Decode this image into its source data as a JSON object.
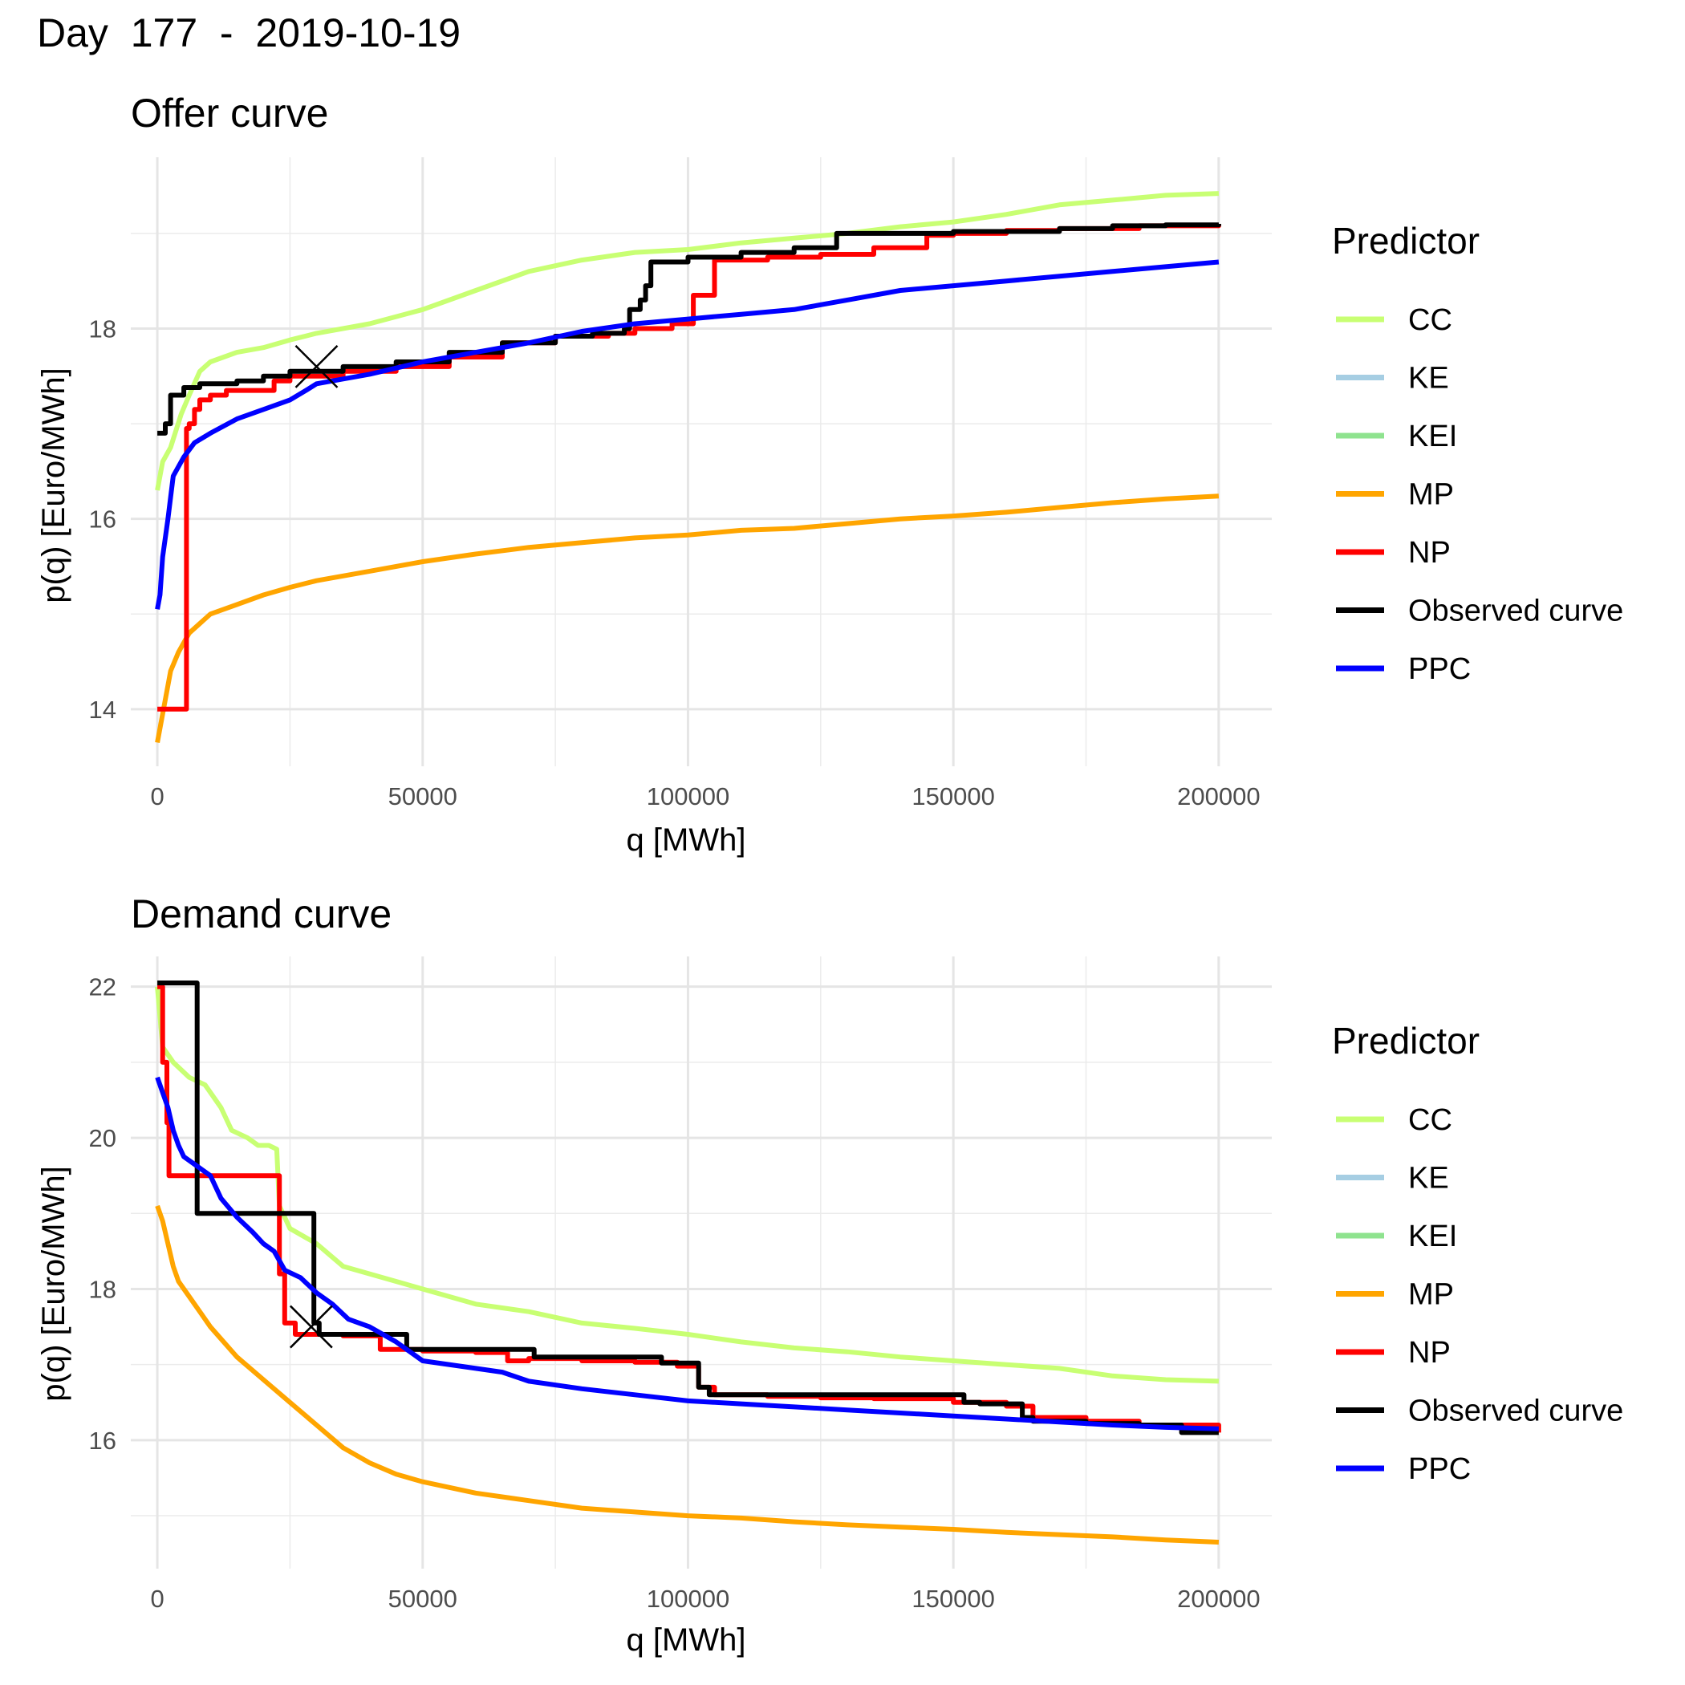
{
  "title": "Day  177  -  2019-10-19",
  "legend": {
    "title": "Predictor",
    "items": [
      {
        "label": "CC",
        "color": "#c8ff73"
      },
      {
        "label": "KE",
        "color": "#a6cee3"
      },
      {
        "label": "KEI",
        "color": "#8fe38f"
      },
      {
        "label": "MP",
        "color": "#ffa500"
      },
      {
        "label": "NP",
        "color": "#ff0000"
      },
      {
        "label": "Observed curve",
        "color": "#000000"
      },
      {
        "label": "PPC",
        "color": "#0000ff"
      }
    ]
  },
  "chart_data": [
    {
      "type": "line",
      "title": "Offer curve",
      "xlabel": "q [MWh]",
      "ylabel": "p(q) [Euro/MWh]",
      "xlim": [
        -5000,
        210000
      ],
      "ylim": [
        13.4,
        19.8
      ],
      "xticks": [
        0,
        50000,
        100000,
        150000,
        200000
      ],
      "xtick_labels": [
        "0",
        "50000",
        "100000",
        "150000",
        "200000"
      ],
      "yticks": [
        14,
        16,
        18
      ],
      "ytick_labels": [
        "14",
        "16",
        "18"
      ],
      "minor_xticks": [
        25000,
        75000,
        125000,
        175000
      ],
      "minor_yticks": [
        15,
        17,
        19
      ],
      "marker": {
        "x": 30000,
        "y": 17.6,
        "symbol": "x"
      },
      "series": [
        {
          "name": "CC",
          "color": "#c8ff73",
          "step": false,
          "x": [
            0,
            1000,
            2500,
            4500,
            6000,
            8000,
            10000,
            15000,
            20000,
            25000,
            30000,
            40000,
            50000,
            60000,
            70000,
            80000,
            90000,
            100000,
            110000,
            120000,
            130000,
            140000,
            150000,
            160000,
            170000,
            180000,
            190000,
            200000
          ],
          "y": [
            16.3,
            16.6,
            16.75,
            17.1,
            17.3,
            17.55,
            17.65,
            17.75,
            17.8,
            17.88,
            17.95,
            18.05,
            18.2,
            18.4,
            18.6,
            18.72,
            18.8,
            18.83,
            18.9,
            18.95,
            19.0,
            19.07,
            19.12,
            19.2,
            19.3,
            19.35,
            19.4,
            19.42
          ]
        },
        {
          "name": "MP",
          "color": "#ffa500",
          "step": false,
          "x": [
            0,
            1000,
            2500,
            4000,
            6000,
            8000,
            10000,
            15000,
            20000,
            25000,
            30000,
            40000,
            50000,
            60000,
            70000,
            80000,
            90000,
            100000,
            110000,
            120000,
            130000,
            140000,
            150000,
            160000,
            170000,
            180000,
            190000,
            200000
          ],
          "y": [
            13.65,
            13.95,
            14.4,
            14.6,
            14.8,
            14.9,
            15.0,
            15.1,
            15.2,
            15.28,
            15.35,
            15.45,
            15.55,
            15.63,
            15.7,
            15.75,
            15.8,
            15.83,
            15.88,
            15.9,
            15.95,
            16.0,
            16.03,
            16.07,
            16.12,
            16.17,
            16.21,
            16.24
          ]
        },
        {
          "name": "NP",
          "color": "#ff0000",
          "step": true,
          "x": [
            0,
            5500,
            6000,
            7000,
            8000,
            10000,
            13000,
            22000,
            25000,
            35000,
            45000,
            55000,
            65000,
            75000,
            85000,
            90000,
            97000,
            101000,
            105000,
            115000,
            125000,
            135000,
            145000,
            150000,
            160000,
            170000,
            185000,
            200000
          ],
          "y": [
            14.0,
            16.95,
            17.0,
            17.15,
            17.25,
            17.3,
            17.35,
            17.45,
            17.5,
            17.55,
            17.6,
            17.7,
            17.85,
            17.92,
            17.95,
            18.0,
            18.05,
            18.35,
            18.72,
            18.75,
            18.78,
            18.85,
            18.98,
            19.0,
            19.03,
            19.05,
            19.08,
            19.1
          ]
        },
        {
          "name": "Observed curve",
          "color": "#000000",
          "step": true,
          "x": [
            0,
            1500,
            2500,
            5000,
            8000,
            15000,
            20000,
            25000,
            35000,
            45000,
            55000,
            65000,
            75000,
            82000,
            88000,
            89000,
            91000,
            92000,
            93000,
            100000,
            110000,
            120000,
            128000,
            140000,
            150000,
            160000,
            170000,
            180000,
            190000,
            200000
          ],
          "y": [
            16.9,
            17.0,
            17.3,
            17.38,
            17.42,
            17.45,
            17.5,
            17.55,
            17.6,
            17.65,
            17.75,
            17.85,
            17.92,
            17.95,
            18.0,
            18.2,
            18.3,
            18.45,
            18.7,
            18.75,
            18.8,
            18.85,
            19.0,
            19.0,
            19.02,
            19.02,
            19.05,
            19.08,
            19.09,
            19.1
          ]
        },
        {
          "name": "PPC",
          "color": "#0000ff",
          "step": false,
          "x": [
            0,
            500,
            1000,
            2000,
            3000,
            5000,
            7000,
            10000,
            15000,
            20000,
            25000,
            28000,
            30000,
            35000,
            40000,
            50000,
            60000,
            70000,
            80000,
            90000,
            100000,
            110000,
            120000,
            130000,
            140000,
            150000,
            160000,
            170000,
            180000,
            190000,
            200000
          ],
          "y": [
            15.05,
            15.2,
            15.6,
            16.0,
            16.45,
            16.65,
            16.8,
            16.9,
            17.05,
            17.15,
            17.25,
            17.35,
            17.42,
            17.47,
            17.52,
            17.65,
            17.75,
            17.85,
            17.97,
            18.05,
            18.1,
            18.15,
            18.2,
            18.3,
            18.4,
            18.45,
            18.5,
            18.55,
            18.6,
            18.65,
            18.7
          ]
        }
      ]
    },
    {
      "type": "line",
      "title": "Demand curve",
      "xlabel": "q [MWh]",
      "ylabel": "p(q) [Euro/MWh]",
      "xlim": [
        -5000,
        210000
      ],
      "ylim": [
        14.3,
        22.4
      ],
      "xticks": [
        0,
        50000,
        100000,
        150000,
        200000
      ],
      "xtick_labels": [
        "0",
        "50000",
        "100000",
        "150000",
        "200000"
      ],
      "yticks": [
        16,
        18,
        20,
        22
      ],
      "ytick_labels": [
        "16",
        "18",
        "20",
        "22"
      ],
      "minor_xticks": [
        25000,
        75000,
        125000,
        175000
      ],
      "minor_yticks": [
        15,
        17,
        19,
        21
      ],
      "marker": {
        "x": 29000,
        "y": 17.5,
        "symbol": "x"
      },
      "series": [
        {
          "name": "CC",
          "color": "#c8ff73",
          "step": false,
          "x": [
            0,
            1000,
            3000,
            6000,
            9000,
            12000,
            14000,
            17000,
            19000,
            21000,
            22500,
            23000,
            25000,
            30000,
            35000,
            40000,
            50000,
            60000,
            70000,
            80000,
            90000,
            100000,
            110000,
            120000,
            130000,
            140000,
            150000,
            160000,
            170000,
            180000,
            190000,
            200000
          ],
          "y": [
            22.0,
            21.2,
            21.0,
            20.8,
            20.7,
            20.4,
            20.1,
            20.0,
            19.9,
            19.9,
            19.85,
            19.1,
            18.8,
            18.6,
            18.3,
            18.2,
            18.0,
            17.8,
            17.7,
            17.55,
            17.48,
            17.4,
            17.3,
            17.22,
            17.17,
            17.1,
            17.05,
            17.0,
            16.95,
            16.85,
            16.8,
            16.78
          ]
        },
        {
          "name": "MP",
          "color": "#ffa500",
          "step": false,
          "x": [
            0,
            1000,
            2000,
            3000,
            4000,
            6000,
            8000,
            10000,
            15000,
            20000,
            25000,
            30000,
            35000,
            40000,
            45000,
            50000,
            60000,
            70000,
            80000,
            90000,
            100000,
            110000,
            120000,
            130000,
            140000,
            150000,
            160000,
            170000,
            180000,
            190000,
            200000
          ],
          "y": [
            19.1,
            18.9,
            18.6,
            18.3,
            18.1,
            17.9,
            17.7,
            17.5,
            17.1,
            16.8,
            16.5,
            16.2,
            15.9,
            15.7,
            15.55,
            15.45,
            15.3,
            15.2,
            15.1,
            15.05,
            15.0,
            14.97,
            14.92,
            14.88,
            14.85,
            14.82,
            14.78,
            14.75,
            14.72,
            14.68,
            14.65
          ]
        },
        {
          "name": "NP",
          "color": "#ff0000",
          "step": true,
          "x": [
            0,
            1000,
            1800,
            2200,
            23000,
            24000,
            26000,
            35000,
            42000,
            50000,
            60000,
            66000,
            70000,
            80000,
            90000,
            98000,
            102000,
            105000,
            115000,
            125000,
            135000,
            145000,
            150000,
            160000,
            165000,
            175000,
            185000,
            200000
          ],
          "y": [
            22.0,
            21.0,
            20.2,
            19.5,
            18.2,
            17.55,
            17.4,
            17.38,
            17.2,
            17.18,
            17.16,
            17.05,
            17.08,
            17.05,
            17.03,
            16.98,
            16.7,
            16.6,
            16.58,
            16.56,
            16.55,
            16.55,
            16.5,
            16.45,
            16.3,
            16.25,
            16.2,
            16.1
          ]
        },
        {
          "name": "Observed curve",
          "color": "#000000",
          "step": true,
          "x": [
            0,
            7500,
            29500,
            30500,
            46000,
            47000,
            50000,
            60000,
            71000,
            80000,
            95000,
            102000,
            104000,
            110000,
            120000,
            130000,
            140000,
            152000,
            155000,
            163000,
            165000,
            175000,
            185000,
            193000,
            200000
          ],
          "y": [
            22.05,
            19.0,
            17.55,
            17.4,
            17.4,
            17.2,
            17.2,
            17.2,
            17.1,
            17.1,
            17.02,
            16.7,
            16.6,
            16.6,
            16.6,
            16.6,
            16.6,
            16.5,
            16.48,
            16.3,
            16.25,
            16.22,
            16.2,
            16.1,
            16.1
          ]
        },
        {
          "name": "PPC",
          "color": "#0000ff",
          "step": false,
          "x": [
            0,
            1000,
            2000,
            3000,
            4000,
            5000,
            7000,
            10000,
            12000,
            15000,
            18000,
            20000,
            22000,
            24000,
            27000,
            30000,
            33000,
            36000,
            40000,
            45000,
            50000,
            60000,
            65000,
            70000,
            80000,
            90000,
            100000,
            110000,
            120000,
            130000,
            140000,
            150000,
            160000,
            170000,
            180000,
            190000,
            200000
          ],
          "y": [
            20.8,
            20.6,
            20.4,
            20.1,
            19.9,
            19.75,
            19.65,
            19.5,
            19.2,
            18.95,
            18.75,
            18.6,
            18.5,
            18.25,
            18.15,
            17.95,
            17.8,
            17.6,
            17.5,
            17.3,
            17.05,
            16.95,
            16.9,
            16.78,
            16.68,
            16.6,
            16.52,
            16.48,
            16.44,
            16.4,
            16.36,
            16.32,
            16.28,
            16.24,
            16.2,
            16.17,
            16.15
          ]
        }
      ]
    }
  ]
}
